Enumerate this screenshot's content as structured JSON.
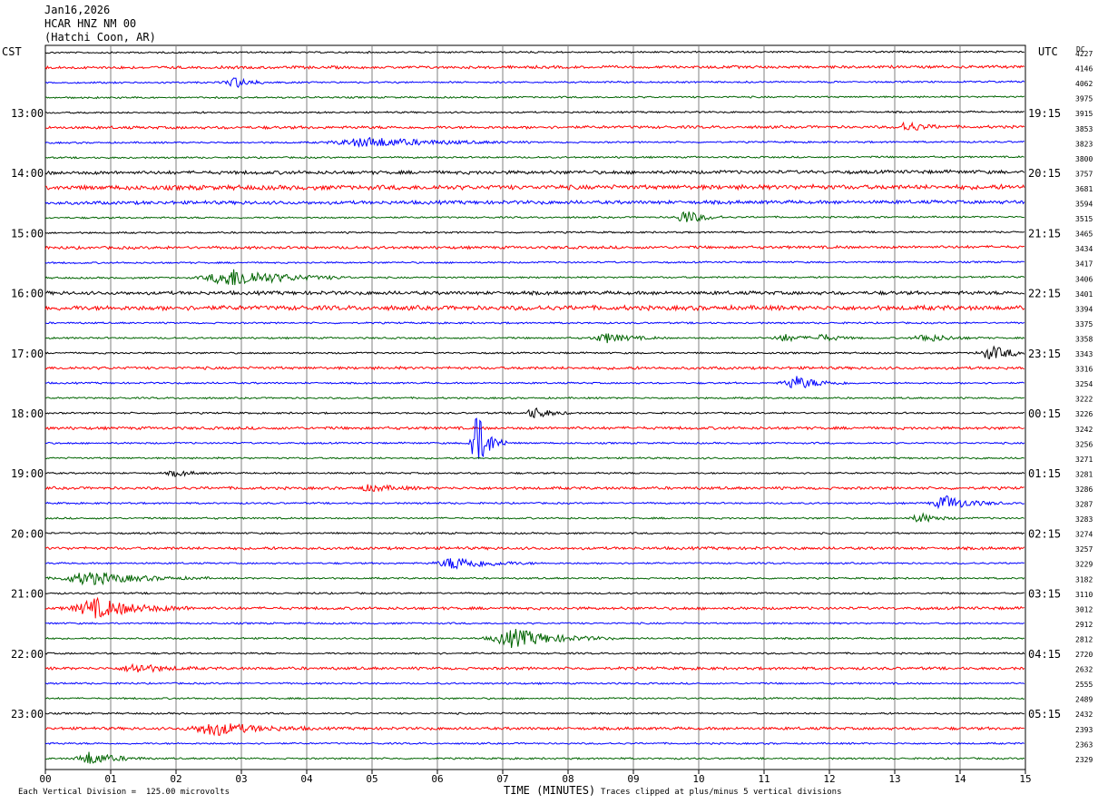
{
  "header": {
    "date": "Jan16,2026",
    "station": "HCAR HNZ NM 00",
    "location": "(Hatchi Coon, AR)"
  },
  "left_axis_label": "CST",
  "right_axis_label": "UTC",
  "dc_label": "DC",
  "footer": {
    "scale_note": "Each Vertical Division =  125.00 microvolts",
    "xlabel": "TIME (MINUTES)",
    "clip_note": "Traces clipped at plus/minus 5 vertical divisions"
  },
  "colors": {
    "cycle": [
      "#000000",
      "#ff0000",
      "#0000ff",
      "#006400"
    ],
    "grid": "#808080"
  },
  "chart_data": {
    "type": "line",
    "xlim": [
      0,
      15
    ],
    "x_ticks": [
      "00",
      "01",
      "02",
      "03",
      "04",
      "05",
      "06",
      "07",
      "08",
      "09",
      "10",
      "11",
      "12",
      "13",
      "14",
      "15"
    ],
    "cst_hour_labels": [
      "13:00",
      "14:00",
      "15:00",
      "16:00",
      "17:00",
      "18:00",
      "19:00",
      "20:00",
      "21:00",
      "22:00",
      "23:00"
    ],
    "utc_hour_labels": [
      "19:15",
      "20:15",
      "21:15",
      "22:15",
      "23:15",
      "00:15",
      "01:15",
      "02:15",
      "03:15",
      "04:15",
      "05:15"
    ],
    "dc_offsets": [
      4227,
      4146,
      4062,
      3975,
      3915,
      3853,
      3823,
      3800,
      3757,
      3681,
      3594,
      3515,
      3465,
      3434,
      3417,
      3406,
      3401,
      3394,
      3375,
      3358,
      3343,
      3316,
      3254,
      3222,
      3226,
      3242,
      3256,
      3271,
      3281,
      3286,
      3287,
      3283,
      3274,
      3257,
      3229,
      3182,
      3110,
      3012,
      2912,
      2812,
      2720,
      2632,
      2555,
      2489,
      2432,
      2393,
      2363,
      2329
    ],
    "traces_per_hour": 4,
    "events": [
      {
        "trace": 2,
        "minute": 2.9,
        "amp": 6,
        "width": 0.2
      },
      {
        "trace": 5,
        "minute": 13.2,
        "amp": 5,
        "width": 0.2
      },
      {
        "trace": 6,
        "minute": 5.0,
        "amp": 5,
        "width": 0.8
      },
      {
        "trace": 11,
        "minute": 9.8,
        "amp": 8,
        "width": 0.2
      },
      {
        "trace": 15,
        "minute": 2.9,
        "amp": 10,
        "width": 0.6
      },
      {
        "trace": 19,
        "minute": 8.6,
        "amp": 5,
        "width": 0.3
      },
      {
        "trace": 19,
        "minute": 11.3,
        "amp": 4,
        "width": 0.2
      },
      {
        "trace": 19,
        "minute": 11.9,
        "amp": 4,
        "width": 0.2
      },
      {
        "trace": 19,
        "minute": 13.5,
        "amp": 4,
        "width": 0.3
      },
      {
        "trace": 20,
        "minute": 14.5,
        "amp": 7,
        "width": 0.3
      },
      {
        "trace": 22,
        "minute": 11.5,
        "amp": 7,
        "width": 0.3
      },
      {
        "trace": 24,
        "minute": 7.5,
        "amp": 6,
        "width": 0.2
      },
      {
        "trace": 26,
        "minute": 6.6,
        "amp": 35,
        "width": 0.15
      },
      {
        "trace": 28,
        "minute": 2.0,
        "amp": 3,
        "width": 0.2
      },
      {
        "trace": 29,
        "minute": 5.0,
        "amp": 3,
        "width": 0.3
      },
      {
        "trace": 30,
        "minute": 13.8,
        "amp": 8,
        "width": 0.3
      },
      {
        "trace": 31,
        "minute": 13.4,
        "amp": 5,
        "width": 0.2
      },
      {
        "trace": 34,
        "minute": 6.3,
        "amp": 7,
        "width": 0.4
      },
      {
        "trace": 35,
        "minute": 0.7,
        "amp": 7,
        "width": 0.6
      },
      {
        "trace": 37,
        "minute": 0.8,
        "amp": 10,
        "width": 0.5
      },
      {
        "trace": 39,
        "minute": 7.2,
        "amp": 10,
        "width": 0.5
      },
      {
        "trace": 41,
        "minute": 1.4,
        "amp": 5,
        "width": 0.3
      },
      {
        "trace": 45,
        "minute": 2.6,
        "amp": 7,
        "width": 0.5
      },
      {
        "trace": 47,
        "minute": 0.7,
        "amp": 7,
        "width": 0.3
      }
    ]
  }
}
